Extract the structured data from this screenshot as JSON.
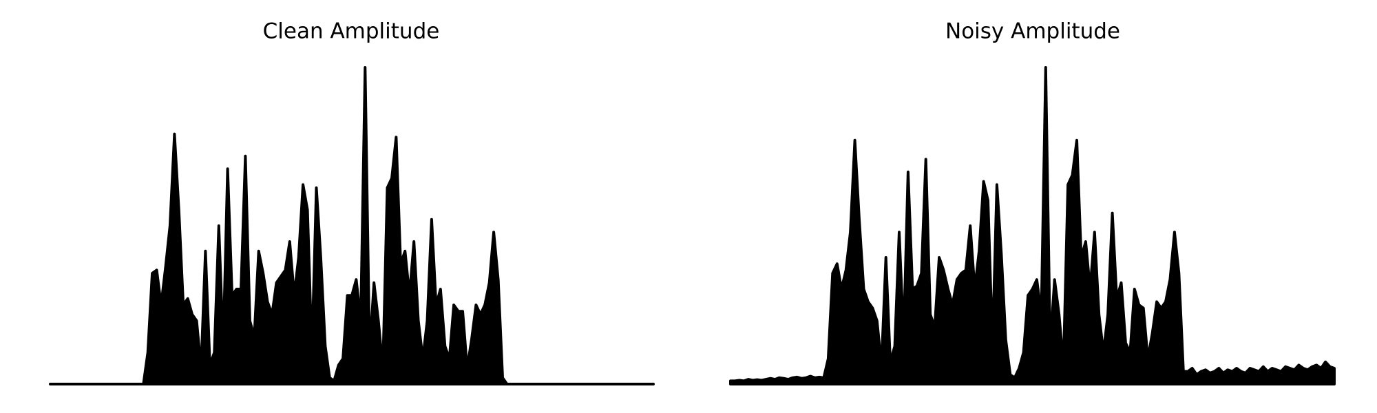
{
  "chart_data": [
    {
      "type": "area",
      "title": "Clean Amplitude",
      "color": "#000000",
      "ylim": [
        0,
        1
      ],
      "values": [
        0,
        0,
        0,
        0,
        0,
        0,
        0,
        0,
        0,
        0,
        0,
        0,
        0,
        0,
        0,
        0,
        0,
        0,
        0,
        0,
        0,
        0,
        0.1,
        0.35,
        0.36,
        0.25,
        0.37,
        0.5,
        0.79,
        0.55,
        0.25,
        0.27,
        0.22,
        0.2,
        0.05,
        0.42,
        0.06,
        0.1,
        0.5,
        0.12,
        0.68,
        0.28,
        0.3,
        0.3,
        0.72,
        0.2,
        0.15,
        0.42,
        0.35,
        0.26,
        0.22,
        0.32,
        0.34,
        0.36,
        0.45,
        0.28,
        0.4,
        0.63,
        0.55,
        0.1,
        0.62,
        0.4,
        0.12,
        0.02,
        0.01,
        0.06,
        0.08,
        0.28,
        0.28,
        0.33,
        0.2,
        1.0,
        0.1,
        0.32,
        0.2,
        0.05,
        0.62,
        0.65,
        0.78,
        0.38,
        0.42,
        0.28,
        0.45,
        0.2,
        0.08,
        0.2,
        0.52,
        0.25,
        0.3,
        0.12,
        0.08,
        0.25,
        0.23,
        0.23,
        0.05,
        0.14,
        0.25,
        0.22,
        0.25,
        0.32,
        0.48,
        0.33,
        0.02,
        0,
        0,
        0,
        0,
        0,
        0,
        0,
        0,
        0,
        0,
        0,
        0,
        0,
        0,
        0,
        0,
        0,
        0,
        0,
        0,
        0,
        0,
        0,
        0,
        0,
        0,
        0,
        0,
        0,
        0,
        0,
        0,
        0,
        0
      ]
    },
    {
      "type": "area",
      "title": "Noisy Amplitude",
      "color": "#000000",
      "ylim": [
        0,
        1
      ],
      "values": [
        0.01,
        0.01,
        0.012,
        0.01,
        0.015,
        0.012,
        0.014,
        0.012,
        0.015,
        0.018,
        0.015,
        0.02,
        0.018,
        0.015,
        0.02,
        0.022,
        0.018,
        0.02,
        0.025,
        0.02,
        0.022,
        0.02,
        0.08,
        0.35,
        0.38,
        0.3,
        0.36,
        0.48,
        0.77,
        0.52,
        0.3,
        0.26,
        0.24,
        0.2,
        0.06,
        0.4,
        0.07,
        0.12,
        0.48,
        0.15,
        0.67,
        0.3,
        0.31,
        0.35,
        0.71,
        0.22,
        0.18,
        0.4,
        0.36,
        0.3,
        0.25,
        0.33,
        0.35,
        0.36,
        0.5,
        0.3,
        0.42,
        0.64,
        0.58,
        0.12,
        0.63,
        0.41,
        0.14,
        0.03,
        0.02,
        0.05,
        0.1,
        0.28,
        0.3,
        0.33,
        0.22,
        1.0,
        0.12,
        0.33,
        0.22,
        0.06,
        0.63,
        0.66,
        0.77,
        0.4,
        0.45,
        0.3,
        0.48,
        0.22,
        0.1,
        0.22,
        0.54,
        0.27,
        0.32,
        0.13,
        0.1,
        0.3,
        0.25,
        0.24,
        0.08,
        0.16,
        0.26,
        0.24,
        0.26,
        0.33,
        0.48,
        0.35,
        0.04,
        0.04,
        0.05,
        0.03,
        0.04,
        0.045,
        0.035,
        0.04,
        0.05,
        0.035,
        0.045,
        0.04,
        0.05,
        0.04,
        0.035,
        0.05,
        0.045,
        0.04,
        0.055,
        0.04,
        0.05,
        0.045,
        0.04,
        0.055,
        0.05,
        0.045,
        0.06,
        0.05,
        0.045,
        0.055,
        0.06,
        0.05,
        0.07,
        0.055,
        0.05
      ]
    }
  ]
}
